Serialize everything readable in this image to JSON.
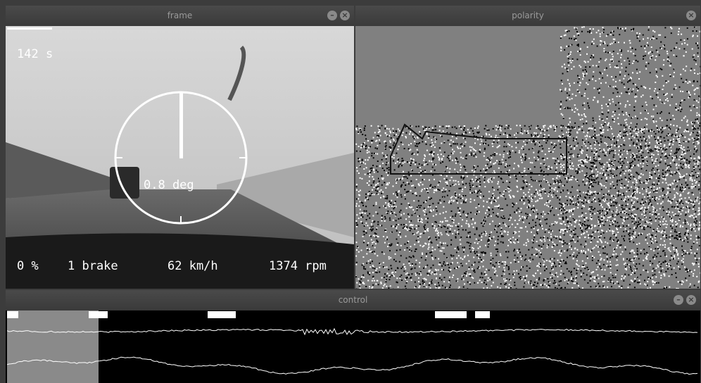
{
  "frame": {
    "title": "frame",
    "time": "142 s",
    "angle": "0.8 deg",
    "throttle": "0 %",
    "brake": "1 brake",
    "speed": "62 km/h",
    "rpm": "1374 rpm"
  },
  "polarity": {
    "title": "polarity"
  },
  "control": {
    "title": "control"
  }
}
